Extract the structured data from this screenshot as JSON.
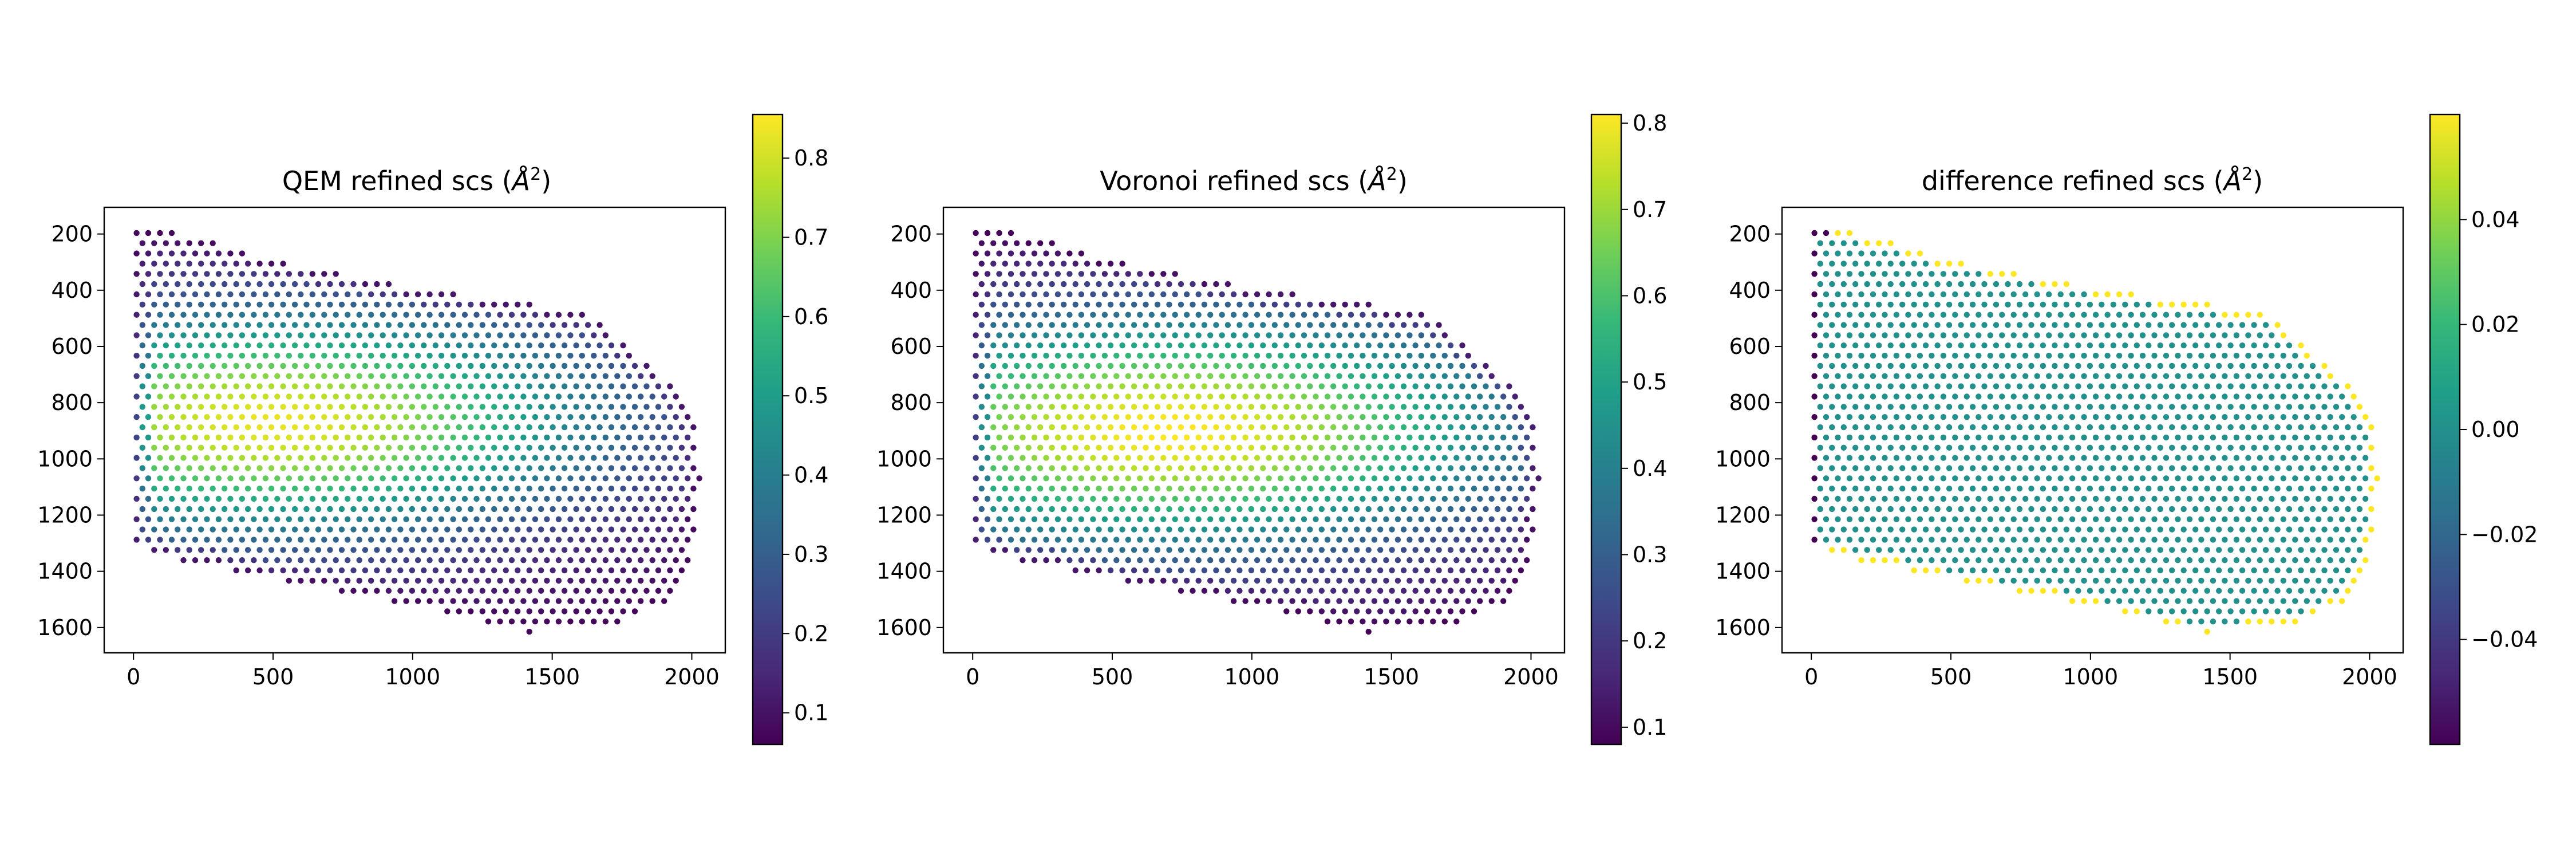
{
  "figure": {
    "background": "#ffffff",
    "colormap": "viridis",
    "colormap_stops": [
      "#440154",
      "#482878",
      "#3e4989",
      "#31688e",
      "#26828e",
      "#1f9e89",
      "#35b779",
      "#6ece58",
      "#b5de2b",
      "#fde725"
    ]
  },
  "chart_data": [
    {
      "type": "scatter",
      "title_main": "QEM refined scs (",
      "title_unit": "Å",
      "title_exp": "2",
      "title_close": ")",
      "xlim": [
        -105,
        2120
      ],
      "ylim": [
        1690,
        105
      ],
      "x_ticks": [
        0,
        500,
        1000,
        1500,
        2000
      ],
      "x_tick_labels": [
        "0",
        "500",
        "1000",
        "1500",
        "2000"
      ],
      "y_ticks": [
        200,
        400,
        600,
        800,
        1000,
        1200,
        1400,
        1600
      ],
      "y_tick_labels": [
        "200",
        "400",
        "600",
        "800",
        "1000",
        "1200",
        "1400",
        "1600"
      ],
      "color_range": [
        0.06,
        0.855
      ],
      "colorbar_ticks": [
        0.1,
        0.2,
        0.3,
        0.4,
        0.5,
        0.6,
        0.7,
        0.8
      ],
      "colorbar_tick_labels": [
        "0.1",
        "0.2",
        "0.3",
        "0.4",
        "0.5",
        "0.6",
        "0.7",
        "0.8"
      ],
      "lattice_outline_x": [
        0,
        60,
        500,
        1000,
        1300,
        1650,
        1950,
        2010,
        2030,
        2000,
        1950,
        1750,
        1400,
        1000,
        500,
        80,
        0
      ],
      "lattice_outline_y": [
        180,
        170,
        290,
        390,
        430,
        490,
        750,
        860,
        1100,
        1320,
        1480,
        1590,
        1620,
        1520,
        1430,
        1340,
        1300
      ],
      "value_field": {
        "center": [
          500,
          870
        ],
        "spread": [
          1250,
          420
        ],
        "max": 0.83,
        "min": 0.07
      }
    },
    {
      "type": "scatter",
      "title_main": "Voronoi refined scs (",
      "title_unit": "Å",
      "title_exp": "2",
      "title_close": ")",
      "xlim": [
        -105,
        2120
      ],
      "ylim": [
        1690,
        105
      ],
      "x_ticks": [
        0,
        500,
        1000,
        1500,
        2000
      ],
      "x_tick_labels": [
        "0",
        "500",
        "1000",
        "1500",
        "2000"
      ],
      "y_ticks": [
        200,
        400,
        600,
        800,
        1000,
        1200,
        1400,
        1600
      ],
      "y_tick_labels": [
        "200",
        "400",
        "600",
        "800",
        "1000",
        "1200",
        "1400",
        "1600"
      ],
      "color_range": [
        0.08,
        0.81
      ],
      "colorbar_ticks": [
        0.1,
        0.2,
        0.3,
        0.4,
        0.5,
        0.6,
        0.7,
        0.8
      ],
      "colorbar_tick_labels": [
        "0.1",
        "0.2",
        "0.3",
        "0.4",
        "0.5",
        "0.6",
        "0.7",
        "0.8"
      ],
      "lattice_outline_x": [
        0,
        60,
        500,
        1000,
        1300,
        1650,
        1950,
        2010,
        2030,
        2000,
        1950,
        1750,
        1400,
        1000,
        500,
        80,
        0
      ],
      "lattice_outline_y": [
        180,
        170,
        290,
        390,
        430,
        490,
        750,
        860,
        1100,
        1320,
        1480,
        1590,
        1620,
        1520,
        1430,
        1340,
        1300
      ],
      "value_field": {
        "center": [
          700,
          900
        ],
        "spread": [
          1350,
          440
        ],
        "max": 0.81,
        "min": 0.08
      }
    },
    {
      "type": "scatter",
      "title_main": "difference refined scs (",
      "title_unit": "Å",
      "title_exp": "2",
      "title_close": ")",
      "xlim": [
        -105,
        2120
      ],
      "ylim": [
        1690,
        105
      ],
      "x_ticks": [
        0,
        500,
        1000,
        1500,
        2000
      ],
      "x_tick_labels": [
        "0",
        "500",
        "1000",
        "1500",
        "2000"
      ],
      "y_ticks": [
        200,
        400,
        600,
        800,
        1000,
        1200,
        1400,
        1600
      ],
      "y_tick_labels": [
        "200",
        "400",
        "600",
        "800",
        "1000",
        "1200",
        "1400",
        "1600"
      ],
      "color_range": [
        -0.06,
        0.06
      ],
      "colorbar_ticks": [
        -0.04,
        -0.02,
        0.0,
        0.02,
        0.04
      ],
      "colorbar_tick_labels": [
        "−0.04",
        "−0.02",
        "0.00",
        "0.02",
        "0.04"
      ],
      "lattice_outline_x": [
        0,
        60,
        500,
        1000,
        1300,
        1650,
        1950,
        2010,
        2030,
        2000,
        1950,
        1750,
        1400,
        1000,
        500,
        80,
        0
      ],
      "lattice_outline_y": [
        180,
        170,
        290,
        390,
        430,
        490,
        750,
        860,
        1100,
        1320,
        1480,
        1590,
        1620,
        1520,
        1430,
        1340,
        1300
      ],
      "value_field": {
        "interior": 0.0,
        "left_edge": -0.06,
        "top_right_edge": 0.06
      }
    }
  ]
}
